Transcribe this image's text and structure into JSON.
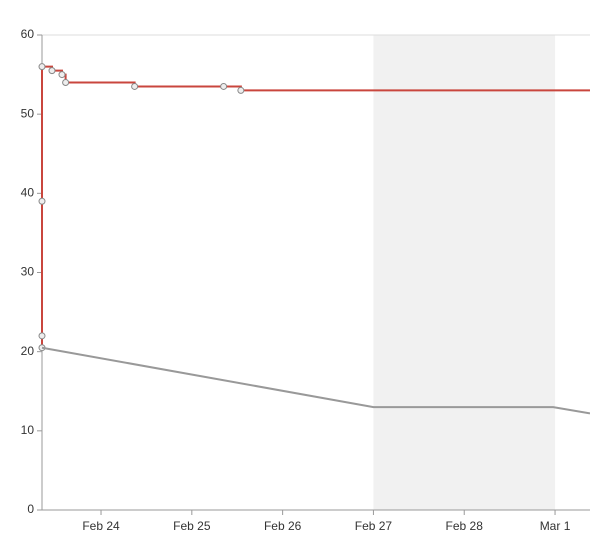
{
  "chart_data": {
    "type": "line",
    "xlim": [
      23.35,
      29.385
    ],
    "ylim": [
      0,
      60
    ],
    "xticks": [
      {
        "value": 24,
        "label": "Feb 24"
      },
      {
        "value": 25,
        "label": "Feb 25"
      },
      {
        "value": 26,
        "label": "Feb 26"
      },
      {
        "value": 27,
        "label": "Feb 27"
      },
      {
        "value": 28,
        "label": "Feb 28"
      },
      {
        "value": 29,
        "label": "Mar 1"
      }
    ],
    "yticks": [
      0,
      10,
      20,
      30,
      40,
      50,
      60
    ],
    "shaded": [
      27,
      29
    ],
    "shade_color": "#f1f1f1",
    "series": [
      {
        "color": "#c9463d",
        "step": true,
        "x": [
          23.35,
          23.35,
          23.35,
          23.35,
          23.46,
          23.57,
          23.61,
          24.37,
          25.35,
          25.54,
          29.385
        ],
        "values": [
          20.5,
          22,
          39,
          56,
          55.5,
          55,
          54,
          53.5,
          53.5,
          53,
          53
        ]
      },
      {
        "color": "#999999",
        "step": false,
        "x": [
          23.35,
          27,
          28.98,
          29.385
        ],
        "values": [
          20.5,
          13,
          13,
          12.2
        ]
      }
    ]
  }
}
